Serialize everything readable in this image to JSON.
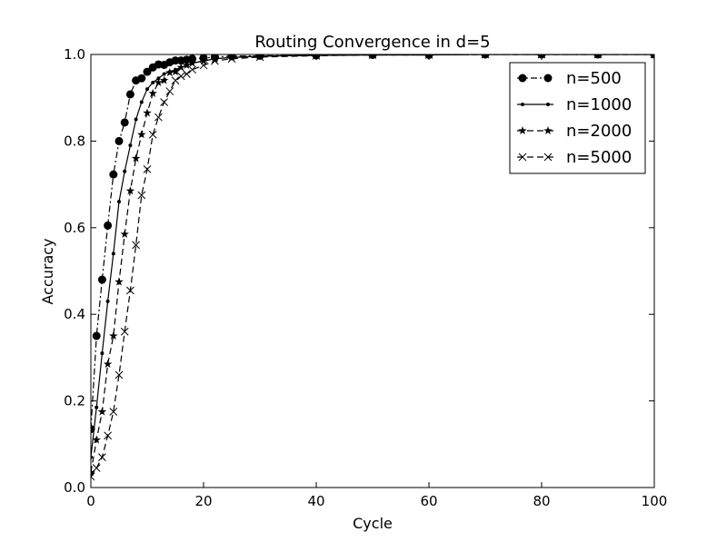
{
  "chart_data": {
    "type": "line",
    "title": "Routing Convergence in d=5",
    "xlabel": "Cycle",
    "ylabel": "Accuracy",
    "xlim": [
      0,
      100
    ],
    "ylim": [
      0.0,
      1.0
    ],
    "xticks": [
      "0",
      "20",
      "40",
      "60",
      "80",
      "100"
    ],
    "yticks": [
      "0.0",
      "0.2",
      "0.4",
      "0.6",
      "0.8",
      "1.0"
    ],
    "grid": false,
    "legend_position": "top-right",
    "series": [
      {
        "name": "n=500",
        "marker": "circle",
        "linestyle": "dashdot",
        "x": [
          0,
          1,
          2,
          3,
          4,
          5,
          6,
          7,
          8,
          9,
          10,
          11,
          12,
          13,
          14,
          15,
          16,
          17,
          18,
          20,
          22,
          25,
          30,
          40,
          50,
          60,
          70,
          80,
          90,
          100
        ],
        "y": [
          0.135,
          0.35,
          0.48,
          0.605,
          0.723,
          0.8,
          0.843,
          0.908,
          0.94,
          0.945,
          0.96,
          0.97,
          0.977,
          0.976,
          0.982,
          0.986,
          0.986,
          0.988,
          0.99,
          0.992,
          0.994,
          0.996,
          0.997,
          0.998,
          0.999,
          0.999,
          1.0,
          1.0,
          1.0,
          1.0
        ]
      },
      {
        "name": "n=1000",
        "marker": "dot",
        "linestyle": "solid",
        "x": [
          0,
          1,
          2,
          3,
          4,
          5,
          6,
          7,
          8,
          9,
          10,
          11,
          12,
          13,
          14,
          15,
          16,
          17,
          18,
          20,
          22,
          25,
          30,
          40,
          50,
          60,
          70,
          80,
          90,
          100
        ],
        "y": [
          0.07,
          0.185,
          0.31,
          0.43,
          0.54,
          0.66,
          0.73,
          0.79,
          0.85,
          0.89,
          0.92,
          0.935,
          0.945,
          0.955,
          0.96,
          0.965,
          0.97,
          0.975,
          0.98,
          0.985,
          0.99,
          0.993,
          0.996,
          0.998,
          0.999,
          0.999,
          1.0,
          1.0,
          1.0,
          1.0
        ]
      },
      {
        "name": "n=2000",
        "marker": "star",
        "linestyle": "dashed",
        "x": [
          0,
          1,
          2,
          3,
          4,
          5,
          6,
          7,
          8,
          9,
          10,
          11,
          12,
          13,
          14,
          15,
          16,
          17,
          18,
          20,
          22,
          25,
          30,
          40,
          50,
          60,
          70,
          80,
          90,
          100
        ],
        "y": [
          0.035,
          0.11,
          0.175,
          0.285,
          0.35,
          0.475,
          0.585,
          0.685,
          0.76,
          0.815,
          0.865,
          0.91,
          0.935,
          0.94,
          0.958,
          0.96,
          0.97,
          0.975,
          0.98,
          0.985,
          0.99,
          0.993,
          0.996,
          0.998,
          0.999,
          1.0,
          1.0,
          1.0,
          1.0,
          1.0
        ]
      },
      {
        "name": "n=5000",
        "marker": "x",
        "linestyle": "dashed",
        "x": [
          0,
          1,
          2,
          3,
          4,
          5,
          6,
          7,
          8,
          9,
          10,
          11,
          12,
          13,
          14,
          15,
          16,
          17,
          18,
          20,
          22,
          25,
          30,
          40,
          50,
          60,
          70,
          80,
          90,
          100
        ],
        "y": [
          0.025,
          0.045,
          0.07,
          0.12,
          0.175,
          0.26,
          0.36,
          0.455,
          0.56,
          0.675,
          0.735,
          0.815,
          0.855,
          0.89,
          0.915,
          0.94,
          0.95,
          0.955,
          0.965,
          0.975,
          0.985,
          0.99,
          0.994,
          0.997,
          0.999,
          0.999,
          1.0,
          1.0,
          1.0,
          1.0
        ]
      }
    ]
  }
}
